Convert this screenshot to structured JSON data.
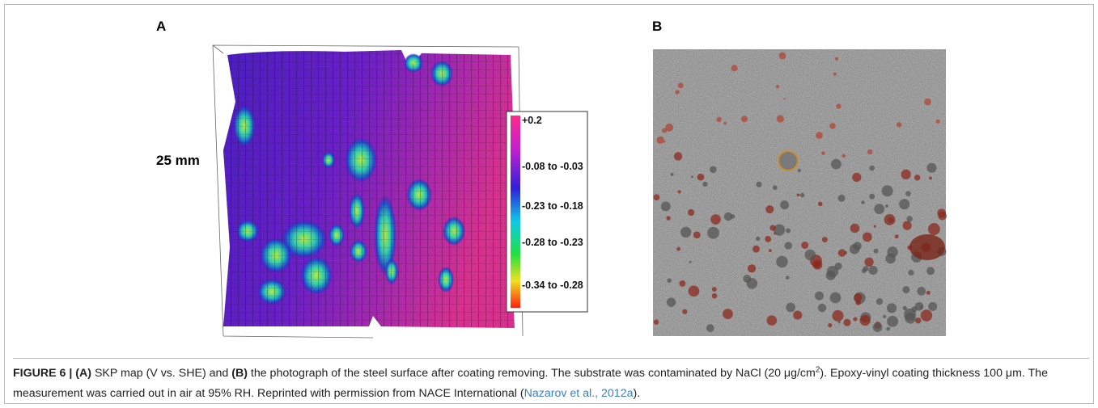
{
  "panel_a": {
    "label": "A",
    "scale_label": "25 mm",
    "legend": [
      "+0.2",
      "-0.08 to -0.03",
      "-0.23 to -0.18",
      "-0.28 to -0.23",
      "-0.34 to -0.28"
    ]
  },
  "panel_b": {
    "label": "B"
  },
  "caption": {
    "label": "FIGURE 6 |",
    "a_marker": "(A)",
    "text_1": "SKP map (V vs. SHE) and",
    "b_marker": "(B)",
    "text_2": "the photograph of the steel surface after coating removing. The substrate was contaminated by NaCl (20 μg/cm",
    "sup": "2",
    "text_3": "). Epoxy-vinyl coating thickness 100 μm. The measurement was carried out in air at 95% RH. Reprinted with permission from NACE International (",
    "link": "Nazarov et al., 2012a",
    "text_4": ")."
  }
}
